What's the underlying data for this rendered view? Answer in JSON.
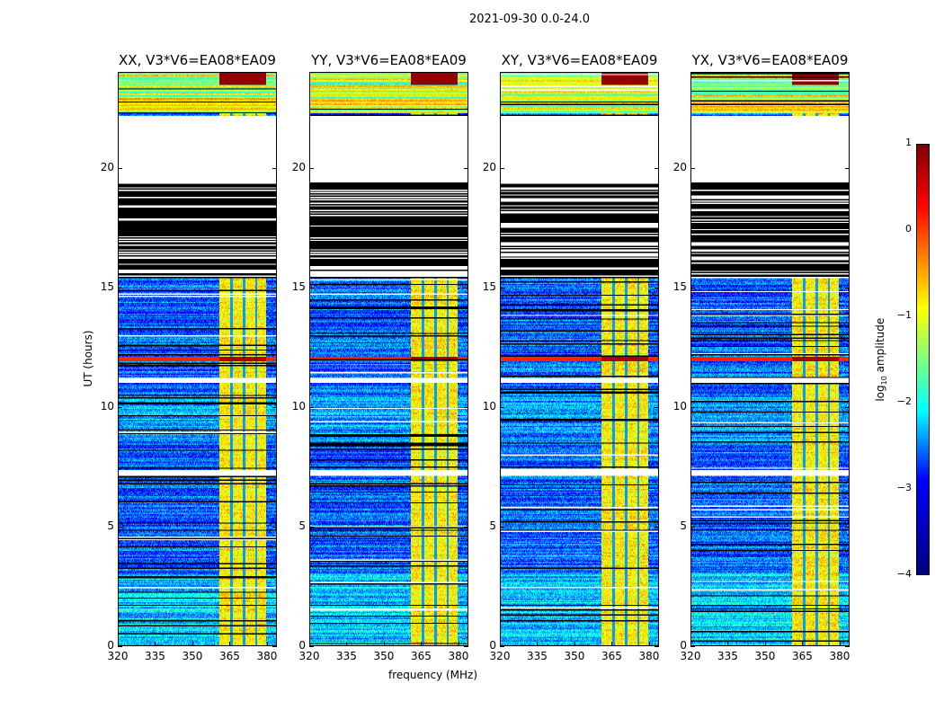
{
  "suptitle": "2021-09-30 0.0-24.0",
  "chart_data": {
    "type": "heatmap",
    "title": "2021-09-30 0.0-24.0",
    "xlabel": "frequency (MHz)",
    "ylabel": "UT (hours)",
    "xlim": [
      320,
      384
    ],
    "ylim": [
      0,
      24
    ],
    "xticks": [
      "320",
      "335",
      "350",
      "365",
      "380"
    ],
    "xtick_values": [
      320,
      335,
      350,
      365,
      380
    ],
    "yticks": [
      "0",
      "5",
      "10",
      "15",
      "20"
    ],
    "ytick_values": [
      0,
      5,
      10,
      15,
      20
    ],
    "panels": [
      {
        "title": "XX, V3*V6=EA08*EA09",
        "seed": 1
      },
      {
        "title": "YY, V3*V6=EA08*EA09",
        "seed": 2
      },
      {
        "title": "XY, V3*V6=EA08*EA09",
        "seed": 3
      },
      {
        "title": "YX, V3*V6=EA08*EA09",
        "seed": 4
      }
    ],
    "colorbar": {
      "label": "log10 amplitude",
      "label_main": "log",
      "label_sub": "10",
      "label_rest": " amplitude",
      "range": [
        -4,
        1
      ],
      "ticks": [
        "1",
        "0",
        "−1",
        "−2",
        "−3",
        "−4"
      ],
      "tick_values": [
        1,
        0,
        -1,
        -2,
        -3,
        -4
      ],
      "colormap": "jet"
    },
    "features": {
      "background_log_amp": -2.9,
      "rfi_band_mhz": [
        361,
        380
      ],
      "rfi_log_amp": -0.8,
      "rfi_gap_channels_mhz": [
        366,
        371,
        376
      ],
      "no_data_hours": [
        [
          19.4,
          22.2
        ],
        [
          11.0,
          11.2
        ],
        [
          7.1,
          7.35
        ]
      ],
      "flagged_hours": [
        [
          15.4,
          19.4
        ]
      ],
      "bright_line_hour": 12.0,
      "bright_line_log_amp": 0.2,
      "high_amp_hours": [
        [
          22.3,
          24.0
        ]
      ]
    }
  }
}
